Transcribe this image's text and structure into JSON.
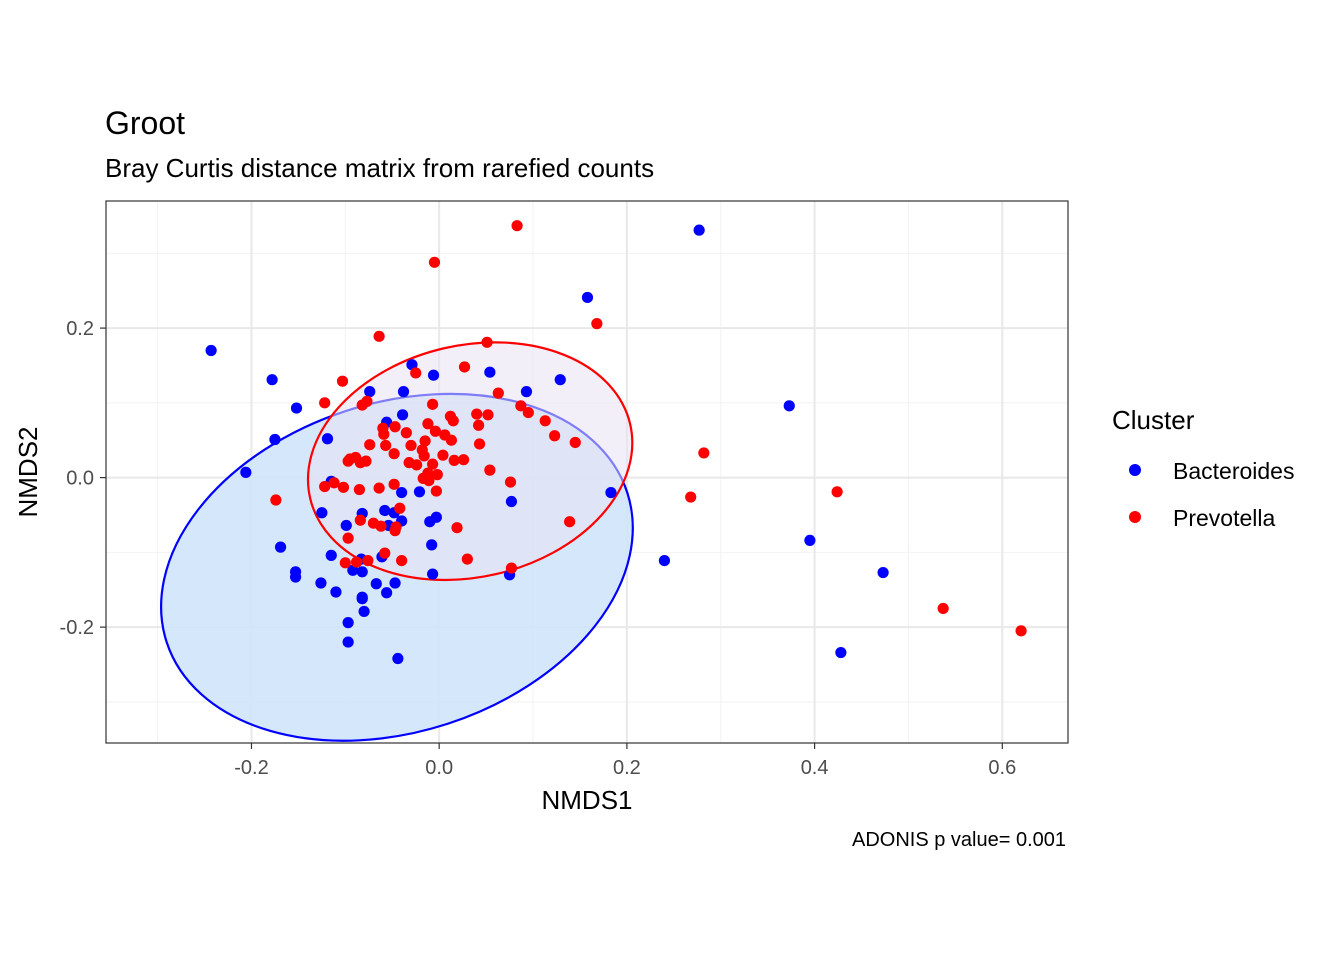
{
  "chart_data": {
    "type": "scatter",
    "title": "Groot",
    "subtitle": "Bray Curtis distance matrix from rarefied counts",
    "xlabel": "NMDS1",
    "ylabel": "NMDS2",
    "caption": "ADONIS p value= 0.001",
    "xlim": [
      -0.355,
      0.67
    ],
    "ylim": [
      -0.355,
      0.37
    ],
    "x_ticks": [
      -0.2,
      0.0,
      0.2,
      0.4,
      0.6
    ],
    "x_tick_labels": [
      "-0.2",
      "0.0",
      "0.2",
      "0.4",
      "0.6"
    ],
    "y_ticks": [
      -0.2,
      0.0,
      0.2
    ],
    "y_tick_labels": [
      "-0.2",
      "0.0",
      "0.2"
    ],
    "grid": true,
    "legend": {
      "title": "Cluster",
      "position": "right"
    },
    "series": [
      {
        "name": "Bacteroides",
        "color": "#0000ff",
        "ellipse": {
          "cx": -0.045,
          "cy": -0.12,
          "rx": 0.258,
          "ry": 0.22,
          "angle_deg": 18,
          "fill": "#cfe4fb",
          "stroke": "#0000ff"
        },
        "points": [
          [
            0.277,
            0.331
          ],
          [
            0.158,
            0.241
          ],
          [
            -0.243,
            0.17
          ],
          [
            -0.178,
            0.131
          ],
          [
            0.129,
            0.131
          ],
          [
            -0.029,
            0.151
          ],
          [
            -0.006,
            0.137
          ],
          [
            0.054,
            0.141
          ],
          [
            0.093,
            0.115
          ],
          [
            -0.074,
            0.115
          ],
          [
            -0.038,
            0.115
          ],
          [
            -0.152,
            0.093
          ],
          [
            0.373,
            0.096
          ],
          [
            -0.039,
            0.084
          ],
          [
            -0.056,
            0.074
          ],
          [
            -0.175,
            0.051
          ],
          [
            -0.119,
            0.052
          ],
          [
            -0.206,
            0.007
          ],
          [
            -0.115,
            -0.005
          ],
          [
            0.183,
            -0.02
          ],
          [
            -0.04,
            -0.02
          ],
          [
            -0.021,
            -0.019
          ],
          [
            0.077,
            -0.032
          ],
          [
            -0.125,
            -0.047
          ],
          [
            -0.058,
            -0.044
          ],
          [
            -0.048,
            -0.047
          ],
          [
            -0.082,
            -0.048
          ],
          [
            -0.003,
            -0.053
          ],
          [
            -0.04,
            -0.058
          ],
          [
            -0.01,
            -0.059
          ],
          [
            -0.099,
            -0.064
          ],
          [
            -0.054,
            -0.064
          ],
          [
            -0.008,
            -0.09
          ],
          [
            -0.169,
            -0.093
          ],
          [
            -0.115,
            -0.104
          ],
          [
            -0.083,
            -0.109
          ],
          [
            -0.061,
            -0.106
          ],
          [
            -0.092,
            -0.124
          ],
          [
            -0.082,
            -0.126
          ],
          [
            0.24,
            -0.111
          ],
          [
            0.395,
            -0.084
          ],
          [
            0.473,
            -0.127
          ],
          [
            -0.153,
            -0.126
          ],
          [
            -0.153,
            -0.133
          ],
          [
            0.075,
            -0.13
          ],
          [
            -0.007,
            -0.129
          ],
          [
            -0.126,
            -0.141
          ],
          [
            -0.067,
            -0.142
          ],
          [
            -0.047,
            -0.141
          ],
          [
            -0.11,
            -0.153
          ],
          [
            -0.056,
            -0.154
          ],
          [
            -0.082,
            -0.16
          ],
          [
            -0.082,
            -0.162
          ],
          [
            -0.08,
            -0.179
          ],
          [
            -0.097,
            -0.194
          ],
          [
            -0.097,
            -0.22
          ],
          [
            -0.044,
            -0.242
          ],
          [
            0.428,
            -0.234
          ]
        ]
      },
      {
        "name": "Prevotella",
        "color": "#ff0000",
        "ellipse": {
          "cx": 0.033,
          "cy": 0.022,
          "rx": 0.175,
          "ry": 0.155,
          "angle_deg": 13,
          "fill": "#e7e1f3",
          "stroke": "#ff0000"
        },
        "points": [
          [
            0.083,
            0.337
          ],
          [
            -0.005,
            0.288
          ],
          [
            0.168,
            0.206
          ],
          [
            -0.064,
            0.189
          ],
          [
            0.051,
            0.181
          ],
          [
            0.027,
            0.148
          ],
          [
            -0.025,
            0.14
          ],
          [
            -0.103,
            0.129
          ],
          [
            0.063,
            0.113
          ],
          [
            -0.122,
            0.1
          ],
          [
            -0.077,
            0.102
          ],
          [
            -0.082,
            0.097
          ],
          [
            -0.007,
            0.098
          ],
          [
            0.087,
            0.096
          ],
          [
            0.095,
            0.087
          ],
          [
            0.052,
            0.084
          ],
          [
            0.04,
            0.085
          ],
          [
            0.012,
            0.082
          ],
          [
            0.015,
            0.076
          ],
          [
            -0.047,
            0.068
          ],
          [
            -0.06,
            0.066
          ],
          [
            -0.059,
            0.058
          ],
          [
            -0.012,
            0.072
          ],
          [
            0.113,
            0.076
          ],
          [
            -0.004,
            0.062
          ],
          [
            0.006,
            0.057
          ],
          [
            0.042,
            0.07
          ],
          [
            -0.035,
            0.06
          ],
          [
            0.123,
            0.056
          ],
          [
            -0.015,
            0.049
          ],
          [
            0.013,
            0.05
          ],
          [
            0.043,
            0.045
          ],
          [
            0.145,
            0.047
          ],
          [
            -0.074,
            0.044
          ],
          [
            -0.03,
            0.043
          ],
          [
            -0.057,
            0.043
          ],
          [
            -0.018,
            0.037
          ],
          [
            -0.048,
            0.032
          ],
          [
            -0.095,
            0.025
          ],
          [
            -0.089,
            0.027
          ],
          [
            -0.078,
            0.022
          ],
          [
            -0.097,
            0.022
          ],
          [
            -0.016,
            0.029
          ],
          [
            0.004,
            0.03
          ],
          [
            -0.084,
            0.02
          ],
          [
            -0.032,
            0.02
          ],
          [
            -0.024,
            0.017
          ],
          [
            -0.007,
            0.018
          ],
          [
            0.016,
            0.023
          ],
          [
            0.026,
            0.024
          ],
          [
            0.054,
            0.01
          ],
          [
            0.282,
            0.033
          ],
          [
            -0.002,
            0.004
          ],
          [
            -0.012,
            0.006
          ],
          [
            -0.017,
            -0.001
          ],
          [
            -0.112,
            -0.007
          ],
          [
            -0.122,
            -0.012
          ],
          [
            0.076,
            -0.006
          ],
          [
            -0.011,
            -0.004
          ],
          [
            -0.048,
            -0.009
          ],
          [
            -0.064,
            -0.014
          ],
          [
            -0.102,
            -0.013
          ],
          [
            -0.085,
            -0.016
          ],
          [
            -0.003,
            -0.018
          ],
          [
            0.424,
            -0.019
          ],
          [
            0.268,
            -0.026
          ],
          [
            -0.174,
            -0.03
          ],
          [
            -0.042,
            -0.041
          ],
          [
            -0.084,
            -0.057
          ],
          [
            -0.07,
            -0.061
          ],
          [
            -0.062,
            -0.065
          ],
          [
            -0.046,
            -0.066
          ],
          [
            0.139,
            -0.059
          ],
          [
            0.019,
            -0.067
          ],
          [
            -0.047,
            -0.071
          ],
          [
            -0.097,
            -0.081
          ],
          [
            -0.058,
            -0.101
          ],
          [
            0.03,
            -0.109
          ],
          [
            -0.076,
            -0.111
          ],
          [
            -0.04,
            -0.111
          ],
          [
            -0.1,
            -0.114
          ],
          [
            -0.088,
            -0.113
          ],
          [
            0.077,
            -0.121
          ],
          [
            0.537,
            -0.175
          ],
          [
            0.62,
            -0.205
          ]
        ]
      }
    ]
  }
}
